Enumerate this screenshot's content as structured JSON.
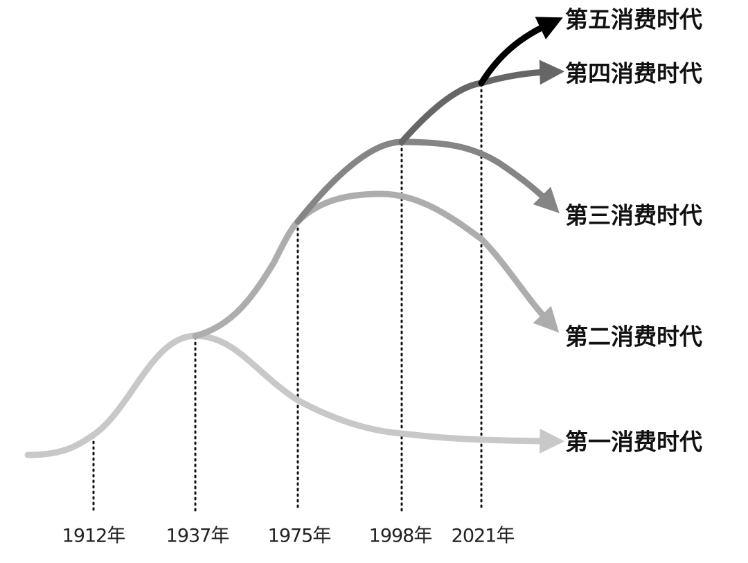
{
  "timeline": {
    "years": [
      "1912年",
      "1937年",
      "1975年",
      "1998年",
      "2021年"
    ]
  },
  "eras": [
    {
      "label": "第五消费时代"
    },
    {
      "label": "第四消费时代"
    },
    {
      "label": "第三消费时代"
    },
    {
      "label": "第二消费时代"
    },
    {
      "label": "第一消费时代"
    }
  ]
}
